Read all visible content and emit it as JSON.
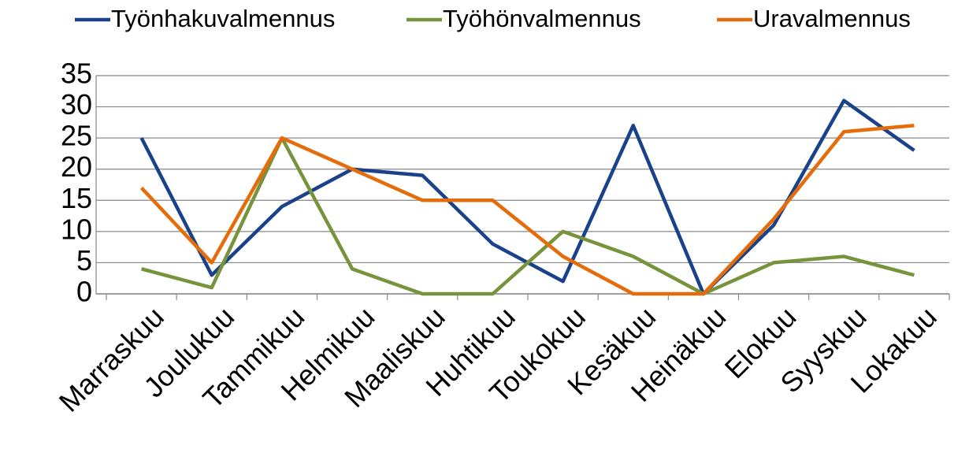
{
  "chart_data": {
    "type": "line",
    "categories": [
      "Marraskuu",
      "Joulukuu",
      "Tammikuu",
      "Helmikuu",
      "Maaliskuu",
      "Huhtikuu",
      "Toukokuu",
      "Kesäkuu",
      "Heinäkuu",
      "Elokuu",
      "Syyskuu",
      "Lokakuu"
    ],
    "series": [
      {
        "name": "Työnhakuvalmennus",
        "color": "#1a428a",
        "values": [
          25,
          3,
          14,
          20,
          19,
          8,
          2,
          27,
          0,
          11,
          31,
          23
        ]
      },
      {
        "name": "Työhönvalmennus",
        "color": "#77933c",
        "values": [
          4,
          1,
          25,
          4,
          0,
          0,
          10,
          6,
          0,
          5,
          6,
          3
        ]
      },
      {
        "name": "Uravalmennus",
        "color": "#e46c0a",
        "values": [
          17,
          5,
          25,
          20,
          15,
          15,
          6,
          0,
          0,
          12,
          26,
          27
        ]
      }
    ],
    "ylim": [
      0,
      35
    ],
    "yticks": [
      0,
      5,
      10,
      15,
      20,
      25,
      30,
      35
    ],
    "grid": true,
    "legend": "top"
  }
}
